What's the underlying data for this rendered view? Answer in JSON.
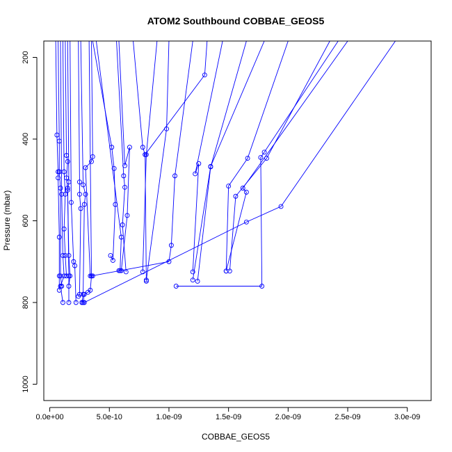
{
  "chart_data": {
    "type": "line",
    "title": "ATOM2 Southbound COBBAE_GEOS5",
    "xlabel": "COBBAE_GEOS5",
    "ylabel": "Pressure (mbar)",
    "xlim": [
      -5e-11,
      3.2e-09
    ],
    "ylim": [
      1040,
      160
    ],
    "y_reversed": true,
    "grid": false,
    "x_ticks": [
      0,
      5e-10,
      1e-09,
      1.5e-09,
      2e-09,
      2.5e-09,
      3e-09
    ],
    "x_tick_labels": [
      "0.0e+00",
      "5.0e-10",
      "1.0e-09",
      "1.5e-09",
      "2.0e-09",
      "2.5e-09",
      "3.0e-09"
    ],
    "y_ticks": [
      200,
      400,
      600,
      800,
      1000
    ],
    "y_tick_labels": [
      "200",
      "400",
      "600",
      "800",
      "1000"
    ],
    "series_color": "#0000ff",
    "series": [
      {
        "values": [
          [
            5e-11,
            160
          ],
          [
            6e-11,
            390
          ],
          [
            7e-11,
            480
          ],
          [
            7e-11,
            495
          ],
          [
            8e-11,
            640
          ],
          [
            8e-11,
            735
          ],
          [
            8e-11,
            770
          ]
        ]
      },
      {
        "values": [
          [
            7e-11,
            160
          ],
          [
            8e-11,
            405
          ],
          [
            8e-11,
            480
          ],
          [
            9e-11,
            520
          ],
          [
            9e-11,
            735
          ],
          [
            1e-10,
            760
          ]
        ]
      },
      {
        "values": [
          [
            9e-11,
            160
          ],
          [
            1e-10,
            535
          ],
          [
            1.1e-10,
            685
          ],
          [
            1.2e-10,
            735
          ],
          [
            9e-11,
            760
          ],
          [
            1.1e-10,
            800
          ]
        ]
      },
      {
        "values": [
          [
            1.1e-10,
            160
          ],
          [
            1.2e-10,
            480
          ],
          [
            1.3e-10,
            535
          ],
          [
            1.2e-10,
            620
          ],
          [
            1.3e-10,
            685
          ],
          [
            1.4e-10,
            735
          ]
        ]
      },
      {
        "values": [
          [
            1.3e-10,
            160
          ],
          [
            1.4e-10,
            440
          ],
          [
            1.5e-10,
            455
          ],
          [
            1.4e-10,
            495
          ],
          [
            1.5e-10,
            520
          ],
          [
            1.6e-10,
            735
          ],
          [
            1.6e-10,
            800
          ]
        ]
      },
      {
        "values": [
          [
            1.5e-10,
            160
          ],
          [
            1.6e-10,
            505
          ],
          [
            1.5e-10,
            525
          ],
          [
            1.6e-10,
            685
          ],
          [
            1.7e-10,
            735
          ],
          [
            1.6e-10,
            760
          ]
        ]
      },
      {
        "values": [
          [
            1.7e-10,
            160
          ],
          [
            1.8e-10,
            555
          ],
          [
            2e-10,
            700
          ],
          [
            2.1e-10,
            710
          ],
          [
            2.2e-10,
            800
          ]
        ]
      },
      {
        "values": [
          [
            2.4e-10,
            160
          ],
          [
            2.5e-10,
            505
          ],
          [
            2.5e-10,
            535
          ],
          [
            2.6e-10,
            570
          ],
          [
            2.5e-10,
            780
          ],
          [
            2.4e-10,
            785
          ]
        ]
      },
      {
        "values": [
          [
            2.6e-10,
            160
          ],
          [
            2.8e-10,
            512
          ],
          [
            3e-10,
            535
          ],
          [
            2.9e-10,
            560
          ],
          [
            2.8e-10,
            780
          ],
          [
            2.7e-10,
            800
          ]
        ]
      },
      {
        "values": [
          [
            3.3e-10,
            160
          ],
          [
            3.5e-10,
            735
          ],
          [
            3.4e-10,
            770
          ],
          [
            3.2e-10,
            775
          ],
          [
            2.9e-10,
            780
          ],
          [
            2.8e-10,
            800
          ]
        ]
      },
      {
        "values": [
          [
            3.5e-10,
            160
          ],
          [
            3.6e-10,
            443
          ],
          [
            3.5e-10,
            455
          ],
          [
            3e-10,
            470
          ],
          [
            3.4e-10,
            735
          ],
          [
            3.6e-10,
            735
          ]
        ]
      },
      {
        "values": [
          [
            3.6e-10,
            160
          ],
          [
            5.2e-10,
            420
          ],
          [
            5.4e-10,
            472
          ],
          [
            5.5e-10,
            560
          ],
          [
            5.3e-10,
            697
          ],
          [
            5.1e-10,
            685
          ]
        ]
      },
      {
        "values": [
          [
            3.9e-10,
            160
          ],
          [
            6e-10,
            640
          ],
          [
            5.9e-10,
            722
          ],
          [
            5.8e-10,
            722
          ]
        ]
      },
      {
        "values": [
          [
            5.6e-10,
            160
          ],
          [
            6.2e-10,
            490
          ],
          [
            6.3e-10,
            518
          ],
          [
            6.1e-10,
            610
          ],
          [
            6.4e-10,
            725
          ]
        ]
      },
      {
        "values": [
          [
            5.8e-10,
            160
          ],
          [
            6.3e-10,
            465
          ],
          [
            6.7e-10,
            420
          ],
          [
            6.5e-10,
            587
          ],
          [
            6e-10,
            722
          ]
        ]
      },
      {
        "values": [
          [
            7e-10,
            160
          ],
          [
            7.8e-10,
            420
          ],
          [
            8e-10,
            438
          ],
          [
            8.1e-10,
            748
          ]
        ]
      },
      {
        "values": [
          [
            9e-10,
            160
          ],
          [
            8.1e-10,
            438
          ],
          [
            7.8e-10,
            725
          ]
        ]
      },
      {
        "values": [
          [
            1e-09,
            160
          ],
          [
            9.8e-10,
            375
          ],
          [
            8.1e-10,
            745
          ]
        ]
      },
      {
        "values": [
          [
            1.2e-09,
            160
          ],
          [
            1.05e-09,
            490
          ],
          [
            1.02e-09,
            660
          ],
          [
            1e-09,
            700
          ],
          [
            3.5e-10,
            735
          ]
        ]
      },
      {
        "values": [
          [
            1.32e-09,
            160
          ],
          [
            1.3e-09,
            243
          ],
          [
            8e-10,
            438
          ]
        ]
      },
      {
        "values": [
          [
            1.45e-09,
            160
          ],
          [
            1.22e-09,
            485
          ],
          [
            1.25e-09,
            460
          ],
          [
            1.2e-09,
            725
          ]
        ]
      },
      {
        "values": [
          [
            1.65e-09,
            160
          ],
          [
            1.35e-09,
            468
          ],
          [
            1.24e-09,
            748
          ]
        ]
      },
      {
        "values": [
          [
            1.8e-09,
            160
          ],
          [
            1.35e-09,
            467
          ],
          [
            1.2e-09,
            745
          ]
        ]
      },
      {
        "values": [
          [
            2e-09,
            160
          ],
          [
            1.66e-09,
            447
          ],
          [
            1.5e-09,
            515
          ],
          [
            1.48e-09,
            723
          ]
        ]
      },
      {
        "values": [
          [
            2.42e-09,
            160
          ],
          [
            1.8e-09,
            432
          ],
          [
            1.77e-09,
            445
          ],
          [
            1.78e-09,
            760
          ],
          [
            1.06e-09,
            760
          ]
        ]
      },
      {
        "values": [
          [
            2.35e-09,
            160
          ],
          [
            1.82e-09,
            447
          ],
          [
            1.56e-09,
            540
          ],
          [
            1.51e-09,
            723
          ]
        ]
      },
      {
        "values": [
          [
            2.5e-09,
            160
          ],
          [
            1.62e-09,
            520
          ],
          [
            1.65e-09,
            530
          ],
          [
            1.48e-09,
            723
          ]
        ]
      },
      {
        "values": [
          [
            2.9e-09,
            160
          ],
          [
            1.94e-09,
            565
          ],
          [
            1.65e-09,
            603
          ],
          [
            2.9e-10,
            800
          ],
          [
            2.7e-10,
            800
          ]
        ]
      }
    ]
  }
}
